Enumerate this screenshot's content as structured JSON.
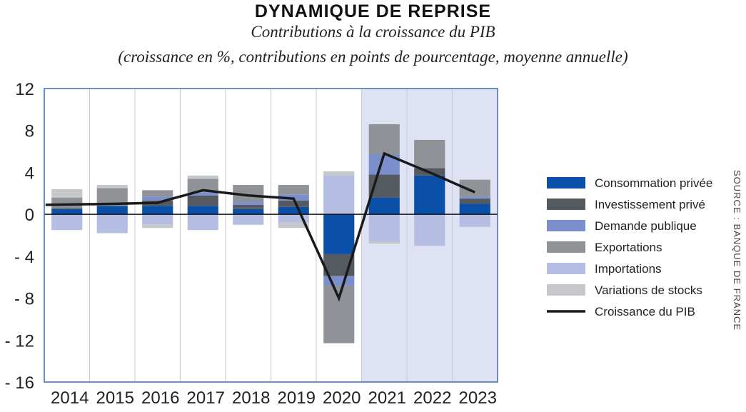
{
  "chart_data": {
    "type": "bar",
    "title": "DYNAMIQUE DE REPRISE",
    "subtitle": "Contributions à la croissance du PIB",
    "subtitle2": "(croissance en %, contributions en points de pourcentage, moyenne annuelle)",
    "source": "SOURCE : BANQUE DE FRANCE",
    "categories": [
      "2014",
      "2015",
      "2016",
      "2017",
      "2018",
      "2019",
      "2020",
      "2021",
      "2022",
      "2023"
    ],
    "forecast_from": "2021",
    "ylim": [
      -16,
      12
    ],
    "yticks": [
      12,
      8,
      4,
      0,
      -4,
      -8,
      -12,
      -16
    ],
    "ytick_labels": [
      "12",
      "8",
      "4",
      "0",
      "- 4",
      "- 8",
      "- 12",
      "- 16"
    ],
    "grid": "vertical",
    "legend_position": "right",
    "series": [
      {
        "name": "Consommation privée",
        "type": "bar",
        "color": "#0a4fa8",
        "values": [
          0.5,
          0.8,
          0.8,
          0.8,
          0.5,
          0.7,
          -3.8,
          1.6,
          3.7,
          1.0
        ]
      },
      {
        "name": "Investissement privé",
        "type": "bar",
        "color": "#555a60",
        "values": [
          0.1,
          0.0,
          0.5,
          1.0,
          0.4,
          0.6,
          -2.1,
          2.2,
          0.7,
          0.5
        ]
      },
      {
        "name": "Demande publique",
        "type": "bar",
        "color": "#7a8fcc",
        "values": [
          0.0,
          0.0,
          0.4,
          0.3,
          0.3,
          0.6,
          -0.9,
          1.9,
          0.0,
          0.2
        ]
      },
      {
        "name": "Exportations",
        "type": "bar",
        "color": "#8f9297",
        "values": [
          1.0,
          1.7,
          0.6,
          1.3,
          1.6,
          0.9,
          -5.5,
          2.9,
          2.7,
          1.6
        ]
      },
      {
        "name": "Importations",
        "type": "bar",
        "color": "#b5bde3",
        "values": [
          -1.5,
          -1.8,
          -1.0,
          -1.5,
          -1.0,
          -0.8,
          3.7,
          -2.6,
          -3.0,
          -1.2
        ]
      },
      {
        "name": "Variations de stocks",
        "type": "bar",
        "color": "#c5c7ca",
        "values": [
          0.8,
          0.3,
          -0.3,
          0.3,
          0.0,
          -0.5,
          0.4,
          -0.2,
          0.0,
          0.0
        ]
      },
      {
        "name": "Croissance du PIB",
        "type": "line",
        "color": "#1a1a1a",
        "values": [
          0.9,
          1.0,
          1.1,
          2.3,
          1.8,
          1.5,
          -8.0,
          5.8,
          4.0,
          2.1
        ]
      }
    ]
  }
}
